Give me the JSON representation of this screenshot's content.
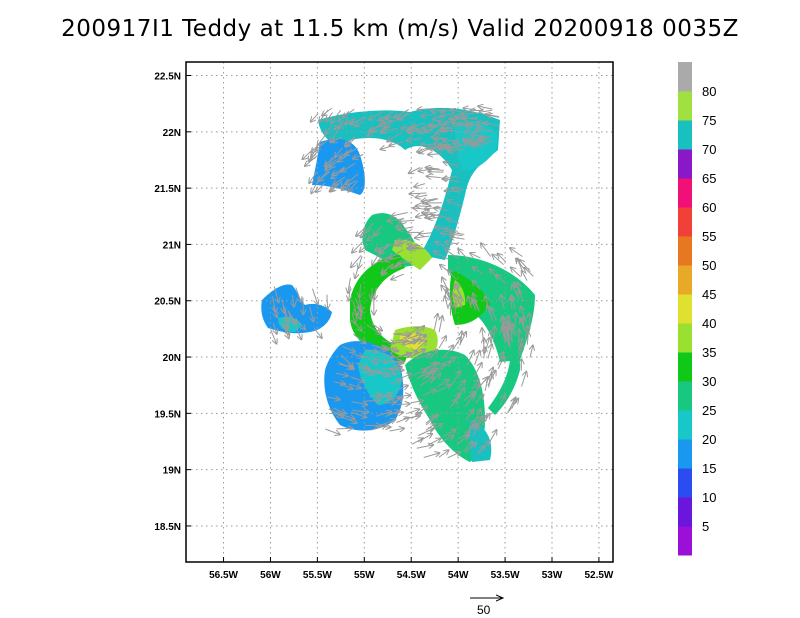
{
  "title": "200917I1 Teddy at 11.5 km (m/s) Valid 20200918 0035Z",
  "chart_data": {
    "type": "scatter",
    "description_kind": "radar-derived wind vectors over color-filled wind speed",
    "x_ticks": [
      "56.5W",
      "56W",
      "55.5W",
      "55W",
      "54.5W",
      "54W",
      "53.5W",
      "53W",
      "52.5W"
    ],
    "x_values": [
      -56.5,
      -56.0,
      -55.5,
      -55.0,
      -54.5,
      -54.0,
      -53.5,
      -53.0,
      -52.5
    ],
    "y_ticks": [
      "18.5N",
      "19N",
      "19.5N",
      "20N",
      "20.5N",
      "21N",
      "21.5N",
      "22N",
      "22.5N"
    ],
    "y_values": [
      18.5,
      19.0,
      19.5,
      20.0,
      20.5,
      21.0,
      21.5,
      22.0,
      22.5
    ],
    "xlim": [
      -56.9,
      -52.35
    ],
    "ylim": [
      18.18,
      22.62
    ],
    "grid": true,
    "colorbar": {
      "labels": [
        "5",
        "10",
        "15",
        "20",
        "25",
        "30",
        "35",
        "40",
        "45",
        "50",
        "55",
        "60",
        "65",
        "70",
        "75",
        "80"
      ],
      "colors": [
        "#9b0fd6",
        "#6a16dd",
        "#2a4cf0",
        "#1a98f0",
        "#18c8c8",
        "#18c880",
        "#10c818",
        "#9ae030",
        "#e0e030",
        "#e8a828",
        "#e87820",
        "#f04038",
        "#f01078",
        "#8818c8",
        "#18c0c0",
        "#a0e040",
        "#aaaaaa"
      ]
    },
    "reference_vector": {
      "label": "50"
    }
  }
}
